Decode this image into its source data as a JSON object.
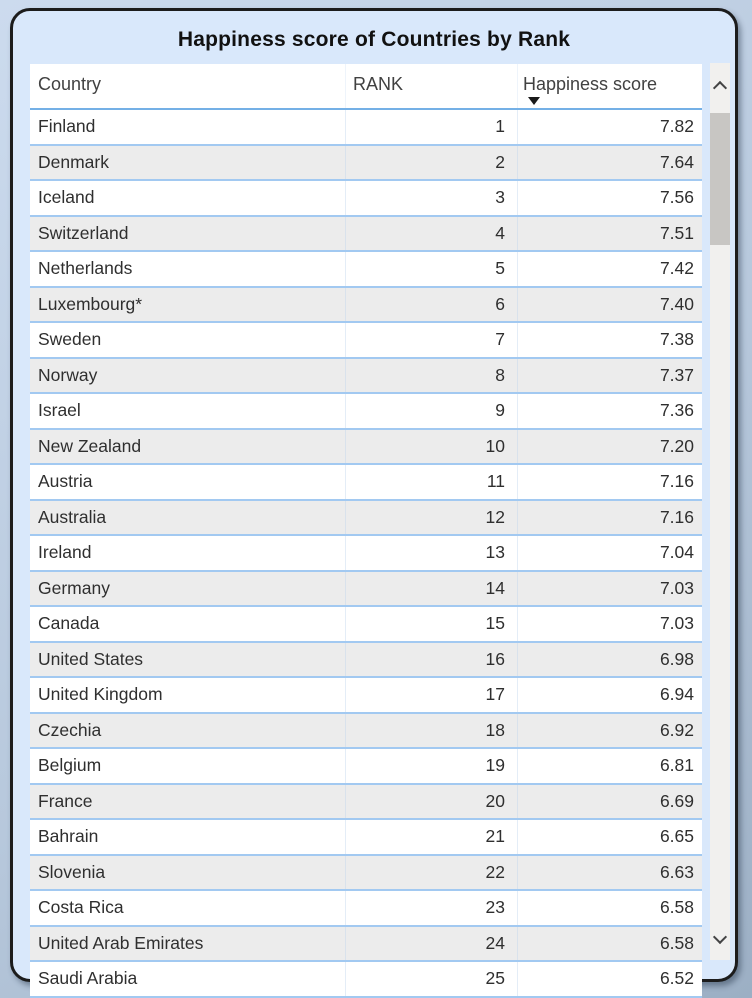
{
  "title": "Happiness score of Countries by Rank",
  "table": {
    "headers": [
      {
        "label": "Country"
      },
      {
        "label": "RANK"
      },
      {
        "label": "Happiness score"
      }
    ],
    "sort_indicator": {
      "column": "Happiness score",
      "direction": "descending",
      "icon": "triangle-down"
    }
  },
  "scrollbar": {
    "up_icon": "chevron-up",
    "down_icon": "chevron-down",
    "thumb_position": "near-top"
  },
  "colors": {
    "card_fill": "#d9e8fb",
    "card_border": "#1c1c1c",
    "row_separator": "#a2c9f1",
    "header_separator": "#74b0e6",
    "zebra_row": "#ececec",
    "scrollbar_track": "#f1f0ee",
    "scrollbar_thumb": "#c8c6c3"
  },
  "chart_data": {
    "type": "table",
    "title": "Happiness score of Countries by Rank",
    "columns": [
      "Country",
      "RANK",
      "Happiness score"
    ],
    "sort": {
      "column": "Happiness score",
      "direction": "descending"
    },
    "rows": [
      [
        "Finland",
        "1",
        "7.82"
      ],
      [
        "Denmark",
        "2",
        "7.64"
      ],
      [
        "Iceland",
        "3",
        "7.56"
      ],
      [
        "Switzerland",
        "4",
        "7.51"
      ],
      [
        "Netherlands",
        "5",
        "7.42"
      ],
      [
        "Luxembourg*",
        "6",
        "7.40"
      ],
      [
        "Sweden",
        "7",
        "7.38"
      ],
      [
        "Norway",
        "8",
        "7.37"
      ],
      [
        "Israel",
        "9",
        "7.36"
      ],
      [
        "New Zealand",
        "10",
        "7.20"
      ],
      [
        "Austria",
        "11",
        "7.16"
      ],
      [
        "Australia",
        "12",
        "7.16"
      ],
      [
        "Ireland",
        "13",
        "7.04"
      ],
      [
        "Germany",
        "14",
        "7.03"
      ],
      [
        "Canada",
        "15",
        "7.03"
      ],
      [
        "United States",
        "16",
        "6.98"
      ],
      [
        "United Kingdom",
        "17",
        "6.94"
      ],
      [
        "Czechia",
        "18",
        "6.92"
      ],
      [
        "Belgium",
        "19",
        "6.81"
      ],
      [
        "France",
        "20",
        "6.69"
      ],
      [
        "Bahrain",
        "21",
        "6.65"
      ],
      [
        "Slovenia",
        "22",
        "6.63"
      ],
      [
        "Costa Rica",
        "23",
        "6.58"
      ],
      [
        "United Arab Emirates",
        "24",
        "6.58"
      ],
      [
        "Saudi Arabia",
        "25",
        "6.52"
      ]
    ]
  }
}
